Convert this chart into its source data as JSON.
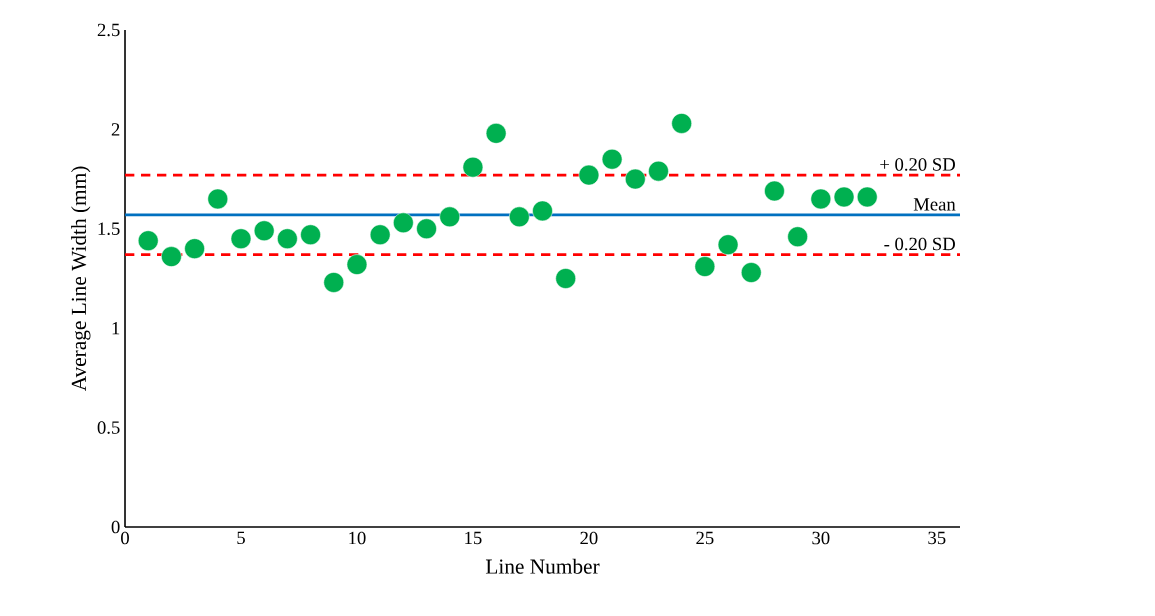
{
  "chart_data": {
    "type": "scatter",
    "xlabel": "Line Number",
    "ylabel": "Average Line Width (mm)",
    "x": [
      1,
      2,
      3,
      4,
      5,
      6,
      7,
      8,
      9,
      10,
      11,
      12,
      13,
      14,
      15,
      16,
      17,
      18,
      19,
      20,
      21,
      22,
      23,
      24,
      25,
      26,
      27,
      28,
      29,
      30,
      31,
      32
    ],
    "values": [
      1.44,
      1.36,
      1.4,
      1.65,
      1.45,
      1.49,
      1.45,
      1.47,
      1.23,
      1.32,
      1.47,
      1.53,
      1.5,
      1.56,
      1.81,
      1.98,
      1.56,
      1.59,
      1.25,
      1.77,
      1.85,
      1.75,
      1.79,
      2.03,
      1.31,
      1.42,
      1.28,
      1.69,
      1.46,
      1.65,
      1.66,
      1.66
    ],
    "color": "#00b050",
    "marker": "circle",
    "xlim": [
      0,
      36
    ],
    "xticks": [
      0,
      5,
      10,
      15,
      20,
      25,
      30,
      35
    ],
    "ylim": [
      0,
      2.5
    ],
    "yticks": [
      0,
      0.5,
      1,
      1.5,
      2,
      2.5
    ],
    "ref_lines": [
      {
        "axis": "y",
        "value": 1.77,
        "label": "+ 0.20 SD",
        "color": "#ff0000",
        "line_style": "dashed"
      },
      {
        "axis": "y",
        "value": 1.57,
        "label": "Mean",
        "color": "#0070c0",
        "line_style": "solid"
      },
      {
        "axis": "y",
        "value": 1.37,
        "label": "- 0.20 SD",
        "color": "#ff0000",
        "line_style": "dashed"
      }
    ],
    "grid": false
  }
}
